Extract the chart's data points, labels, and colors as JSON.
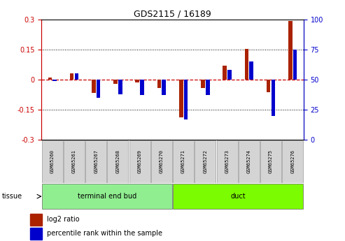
{
  "title": "GDS2115 / 16189",
  "samples": [
    "GSM65260",
    "GSM65261",
    "GSM65267",
    "GSM65268",
    "GSM65269",
    "GSM65270",
    "GSM65271",
    "GSM65272",
    "GSM65273",
    "GSM65274",
    "GSM65275",
    "GSM65276"
  ],
  "log2_ratio": [
    0.01,
    0.03,
    -0.065,
    -0.022,
    -0.013,
    -0.042,
    -0.19,
    -0.042,
    0.07,
    0.152,
    -0.062,
    0.29
  ],
  "percentile": [
    49,
    55,
    35,
    38,
    37,
    37,
    17,
    37,
    58,
    65,
    20,
    75
  ],
  "groups": [
    {
      "label": "terminal end bud",
      "start": 0,
      "end": 6,
      "color": "#90ee90"
    },
    {
      "label": "duct",
      "start": 6,
      "end": 12,
      "color": "#7cfc00"
    }
  ],
  "group_row_label": "tissue",
  "ylim": [
    -0.3,
    0.3
  ],
  "yticks_left": [
    -0.3,
    -0.15,
    0,
    0.15,
    0.3
  ],
  "yticks_right": [
    0,
    25,
    50,
    75,
    100
  ],
  "bar_width": 0.18,
  "red_color": "#aa2200",
  "blue_color": "#0000cc",
  "background_color": "#ffffff",
  "grid_color": "#000000",
  "zero_line_color": "#cc0000",
  "title_color": "#000000",
  "left_tick_color": "#cc0000",
  "right_tick_color": "#0000cc",
  "legend_red_label": "log2 ratio",
  "legend_blue_label": "percentile rank within the sample"
}
